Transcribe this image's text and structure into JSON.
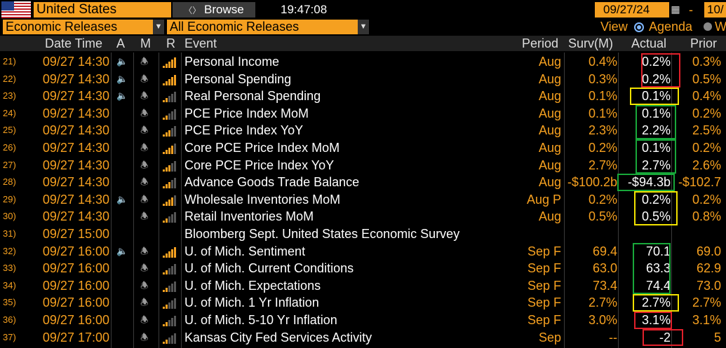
{
  "header": {
    "country": "United States",
    "browse_label": "Browse",
    "time": "19:47:08",
    "start_date": "09/27/24",
    "end_date": "10/",
    "dash": "-"
  },
  "filters": {
    "category": "Economic Releases",
    "subcategory": "All Economic Releases",
    "view_label": "View",
    "agenda_label": "Agenda",
    "week_label": "W"
  },
  "columns": {
    "date_time": "Date Time",
    "a": "A",
    "m": "M",
    "r": "R",
    "event": "Event",
    "period": "Period",
    "survey": "Surv(M)",
    "actual": "Actual",
    "prior": "Prior"
  },
  "colors": {
    "accent_orange": "#f5a020",
    "box_red": "#e0202a",
    "box_yellow": "#f2e200",
    "box_green": "#18a83a"
  },
  "rows": [
    {
      "num": "21)",
      "datetime": "09/27 14:30",
      "alert": true,
      "relevance": 5,
      "event": "Personal Income",
      "period": "Aug",
      "survey": "0.4%",
      "actual": "0.2%",
      "prior": "0.3%"
    },
    {
      "num": "22)",
      "datetime": "09/27 14:30",
      "alert": true,
      "relevance": 5,
      "event": "Personal Spending",
      "period": "Aug",
      "survey": "0.3%",
      "actual": "0.2%",
      "prior": "0.5%"
    },
    {
      "num": "23)",
      "datetime": "09/27 14:30",
      "alert": true,
      "relevance": 2,
      "event": "Real Personal Spending",
      "period": "Aug",
      "survey": "0.1%",
      "actual": "0.1%",
      "prior": "0.4%"
    },
    {
      "num": "24)",
      "datetime": "09/27 14:30",
      "alert": false,
      "relevance": 2,
      "event": "PCE Price Index MoM",
      "period": "Aug",
      "survey": "0.1%",
      "actual": "0.1%",
      "prior": "0.2%"
    },
    {
      "num": "25)",
      "datetime": "09/27 14:30",
      "alert": false,
      "relevance": 3,
      "event": "PCE Price Index YoY",
      "period": "Aug",
      "survey": "2.3%",
      "actual": "2.2%",
      "prior": "2.5%"
    },
    {
      "num": "26)",
      "datetime": "09/27 14:30",
      "alert": false,
      "relevance": 4,
      "event": "Core PCE Price Index MoM",
      "period": "Aug",
      "survey": "0.2%",
      "actual": "0.1%",
      "prior": "0.2%"
    },
    {
      "num": "27)",
      "datetime": "09/27 14:30",
      "alert": false,
      "relevance": 3,
      "event": "Core PCE Price Index YoY",
      "period": "Aug",
      "survey": "2.7%",
      "actual": "2.7%",
      "prior": "2.6%"
    },
    {
      "num": "28)",
      "datetime": "09/27 14:30",
      "alert": false,
      "relevance": 3,
      "event": "Advance Goods Trade Balance",
      "period": "Aug",
      "survey": "-$100.2b",
      "actual": "-$94.3b",
      "prior": "-$102.7"
    },
    {
      "num": "29)",
      "datetime": "09/27 14:30",
      "alert": true,
      "relevance": 4,
      "event": "Wholesale Inventories MoM",
      "period": "Aug P",
      "survey": "0.2%",
      "actual": "0.2%",
      "prior": "0.2%"
    },
    {
      "num": "30)",
      "datetime": "09/27 14:30",
      "alert": false,
      "relevance": 2,
      "event": "Retail Inventories MoM",
      "period": "Aug",
      "survey": "0.5%",
      "actual": "0.5%",
      "prior": "0.8%"
    },
    {
      "num": "31)",
      "datetime": "09/27 15:00",
      "alert": false,
      "relevance": 0,
      "event": "Bloomberg Sept. United States Economic Survey",
      "period": "",
      "survey": "",
      "actual": "",
      "prior": ""
    },
    {
      "num": "32)",
      "datetime": "09/27 16:00",
      "alert": true,
      "relevance": 5,
      "event": "U. of Mich. Sentiment",
      "period": "Sep F",
      "survey": "69.4",
      "actual": "70.1",
      "prior": "69.0"
    },
    {
      "num": "33)",
      "datetime": "09/27 16:00",
      "alert": false,
      "relevance": 2,
      "event": "U. of Mich. Current Conditions",
      "period": "Sep F",
      "survey": "63.0",
      "actual": "63.3",
      "prior": "62.9"
    },
    {
      "num": "34)",
      "datetime": "09/27 16:00",
      "alert": false,
      "relevance": 2,
      "event": "U. of Mich. Expectations",
      "period": "Sep F",
      "survey": "73.4",
      "actual": "74.4",
      "prior": "73.0"
    },
    {
      "num": "35)",
      "datetime": "09/27 16:00",
      "alert": false,
      "relevance": 2,
      "event": "U. of Mich. 1 Yr Inflation",
      "period": "Sep F",
      "survey": "2.7%",
      "actual": "2.7%",
      "prior": "2.7%"
    },
    {
      "num": "36)",
      "datetime": "09/27 16:00",
      "alert": false,
      "relevance": 2,
      "event": "U. of Mich. 5-10 Yr Inflation",
      "period": "Sep F",
      "survey": "3.0%",
      "actual": "3.1%",
      "prior": "3.1%"
    },
    {
      "num": "37)",
      "datetime": "09/27 17:00",
      "alert": false,
      "relevance": 2,
      "event": "Kansas City Fed Services Activity",
      "period": "Sep",
      "survey": "--",
      "actual": "-2",
      "prior": "5"
    }
  ]
}
